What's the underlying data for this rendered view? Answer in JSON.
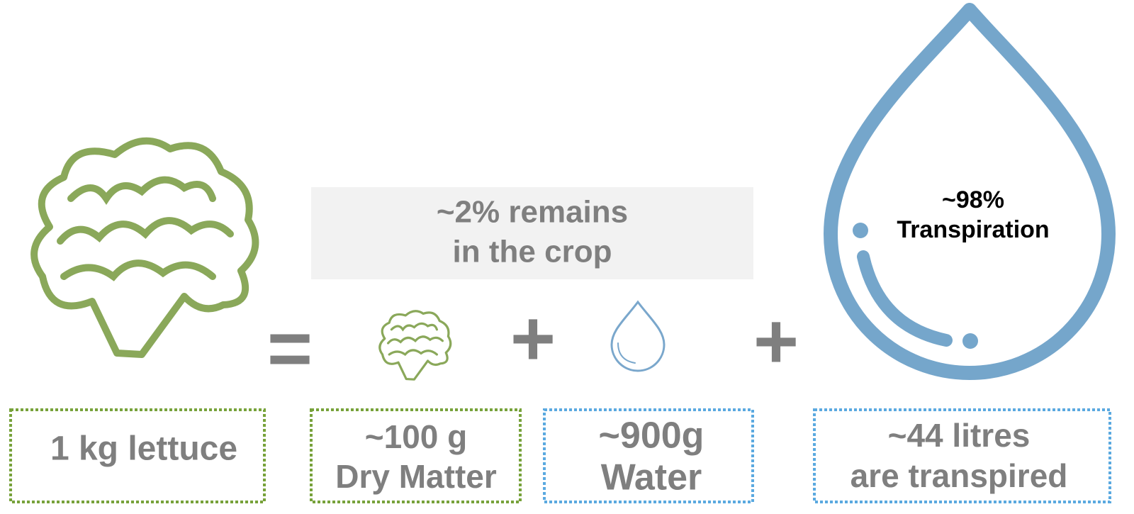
{
  "callout": {
    "lines": [
      "~2% remains",
      "in the crop"
    ]
  },
  "operators": [
    "=",
    "+",
    "+"
  ],
  "drop_label": {
    "lines": [
      "~98%",
      "Transpiration"
    ]
  },
  "boxes": [
    {
      "lines": [
        "1 kg lettuce"
      ]
    },
    {
      "lines": [
        "~100 g",
        "Dry Matter"
      ]
    },
    {
      "lines": [
        "~900g",
        "Water"
      ]
    },
    {
      "lines": [
        "~44 litres",
        "are transpired"
      ]
    }
  ]
}
